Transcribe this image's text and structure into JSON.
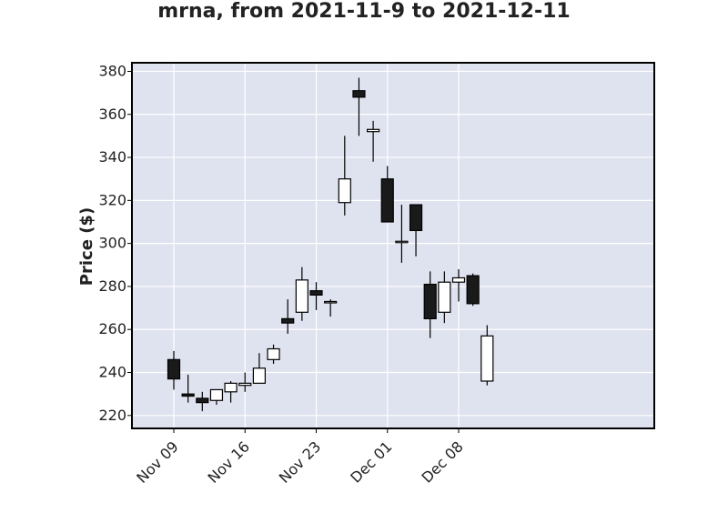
{
  "chart_data": {
    "type": "candlestick",
    "title": "mrna, from 2021-11-9 to 2021-12-11",
    "ylabel": "Price ($)",
    "xlabel": "",
    "ylim": [
      214,
      384
    ],
    "y_ticks": [
      220,
      240,
      260,
      280,
      300,
      320,
      340,
      360,
      380
    ],
    "x_ticks": [
      {
        "date": "2021-11-09",
        "label": "Nov 09"
      },
      {
        "date": "2021-11-16",
        "label": "Nov 16"
      },
      {
        "date": "2021-11-23",
        "label": "Nov 23"
      },
      {
        "date": "2021-12-01",
        "label": "Dec 01"
      },
      {
        "date": "2021-12-08",
        "label": "Dec 08"
      }
    ],
    "grid": true,
    "colors": {
      "background": "#dfe3ef",
      "grid": "#ffffff",
      "up_body": "#ffffff",
      "down_body": "#1a1a1a",
      "outline": "#000000"
    },
    "candles": [
      {
        "date": "2021-11-09",
        "open": 246,
        "high": 250,
        "low": 232,
        "close": 237
      },
      {
        "date": "2021-11-10",
        "open": 230,
        "high": 239,
        "low": 226,
        "close": 229
      },
      {
        "date": "2021-11-11",
        "open": 228,
        "high": 231,
        "low": 222,
        "close": 226
      },
      {
        "date": "2021-11-12",
        "open": 227,
        "high": 232,
        "low": 225,
        "close": 232
      },
      {
        "date": "2021-11-15",
        "open": 231,
        "high": 236,
        "low": 226,
        "close": 235
      },
      {
        "date": "2021-11-16",
        "open": 234,
        "high": 240,
        "low": 231,
        "close": 235
      },
      {
        "date": "2021-11-17",
        "open": 235,
        "high": 249,
        "low": 235,
        "close": 242
      },
      {
        "date": "2021-11-18",
        "open": 246,
        "high": 253,
        "low": 244,
        "close": 251
      },
      {
        "date": "2021-11-19",
        "open": 265,
        "high": 274,
        "low": 258,
        "close": 263
      },
      {
        "date": "2021-11-22",
        "open": 268,
        "high": 289,
        "low": 264,
        "close": 283
      },
      {
        "date": "2021-11-23",
        "open": 278,
        "high": 282,
        "low": 269,
        "close": 276
      },
      {
        "date": "2021-11-24",
        "open": 273,
        "high": 274,
        "low": 266,
        "close": 273
      },
      {
        "date": "2021-11-26",
        "open": 319,
        "high": 350,
        "low": 313,
        "close": 330
      },
      {
        "date": "2021-11-29",
        "open": 371,
        "high": 377,
        "low": 350,
        "close": 368
      },
      {
        "date": "2021-11-30",
        "open": 352,
        "high": 357,
        "low": 338,
        "close": 353
      },
      {
        "date": "2021-12-01",
        "open": 330,
        "high": 336,
        "low": 310,
        "close": 310
      },
      {
        "date": "2021-12-02",
        "open": 301,
        "high": 318,
        "low": 291,
        "close": 301
      },
      {
        "date": "2021-12-03",
        "open": 318,
        "high": 318,
        "low": 294,
        "close": 306
      },
      {
        "date": "2021-12-06",
        "open": 281,
        "high": 287,
        "low": 256,
        "close": 265
      },
      {
        "date": "2021-12-07",
        "open": 268,
        "high": 287,
        "low": 263,
        "close": 282
      },
      {
        "date": "2021-12-08",
        "open": 282,
        "high": 288,
        "low": 273,
        "close": 284
      },
      {
        "date": "2021-12-09",
        "open": 285,
        "high": 286,
        "low": 271,
        "close": 272
      },
      {
        "date": "2021-12-10",
        "open": 236,
        "high": 262,
        "low": 234,
        "close": 257
      }
    ]
  }
}
